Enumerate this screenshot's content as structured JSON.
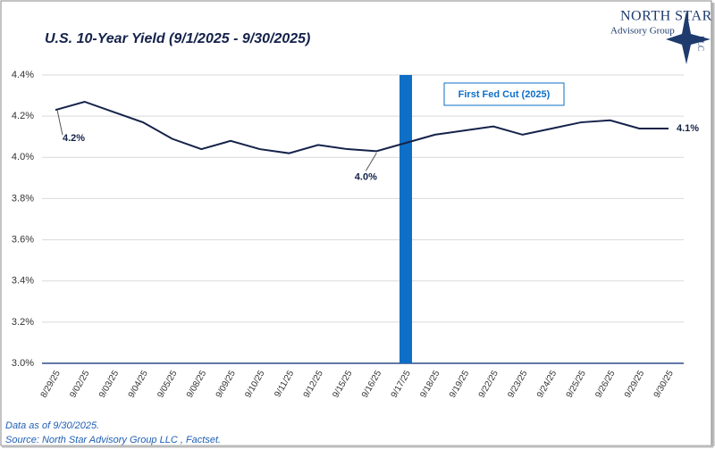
{
  "chart_data": {
    "type": "line",
    "title": "U.S. 10-Year Yield (9/1/2025 - 9/30/2025)",
    "categories": [
      "8/29/25",
      "9/02/25",
      "9/03/25",
      "9/04/25",
      "9/05/25",
      "9/08/25",
      "9/09/25",
      "9/10/25",
      "9/11/25",
      "9/12/25",
      "9/15/25",
      "9/16/25",
      "9/17/25",
      "9/18/25",
      "9/19/25",
      "9/22/25",
      "9/23/25",
      "9/24/25",
      "9/25/25",
      "9/26/25",
      "9/29/25",
      "9/30/25"
    ],
    "series": [
      {
        "color": "#14224a",
        "values": [
          4.23,
          4.27,
          4.22,
          4.17,
          4.09,
          4.04,
          4.08,
          4.04,
          4.02,
          4.06,
          4.04,
          4.03,
          4.07,
          4.11,
          4.13,
          4.15,
          4.11,
          4.14,
          4.17,
          4.18,
          4.14,
          4.14
        ],
        "value_labels": [
          "4.2%",
          null,
          null,
          null,
          null,
          null,
          null,
          null,
          null,
          null,
          null,
          "4.0%",
          null,
          null,
          null,
          null,
          null,
          null,
          null,
          null,
          null,
          "4.1%"
        ]
      }
    ],
    "ylim": [
      3.0,
      4.4
    ],
    "yticks": [
      {
        "value": 3.0,
        "label": "3.0%"
      },
      {
        "value": 3.2,
        "label": "3.2%"
      },
      {
        "value": 3.4,
        "label": "3.4%"
      },
      {
        "value": 3.6,
        "label": "3.6%"
      },
      {
        "value": 3.8,
        "label": "3.8%"
      },
      {
        "value": 4.0,
        "label": "4.0%"
      },
      {
        "value": 4.2,
        "label": "4.2%"
      },
      {
        "value": 4.4,
        "label": "4.4%"
      }
    ],
    "grid": true,
    "annotation": {
      "text": "First Fed Cut (2025)",
      "x": "9/17/25",
      "color": "#0f6fc6"
    },
    "notes": [
      "Data as of 9/30/2025.",
      "Source: North Star Advisory Group LLC , Factset."
    ]
  },
  "logo": {
    "name": "North Star",
    "subtitle": "Advisory Group",
    "suffix": "LLC"
  }
}
